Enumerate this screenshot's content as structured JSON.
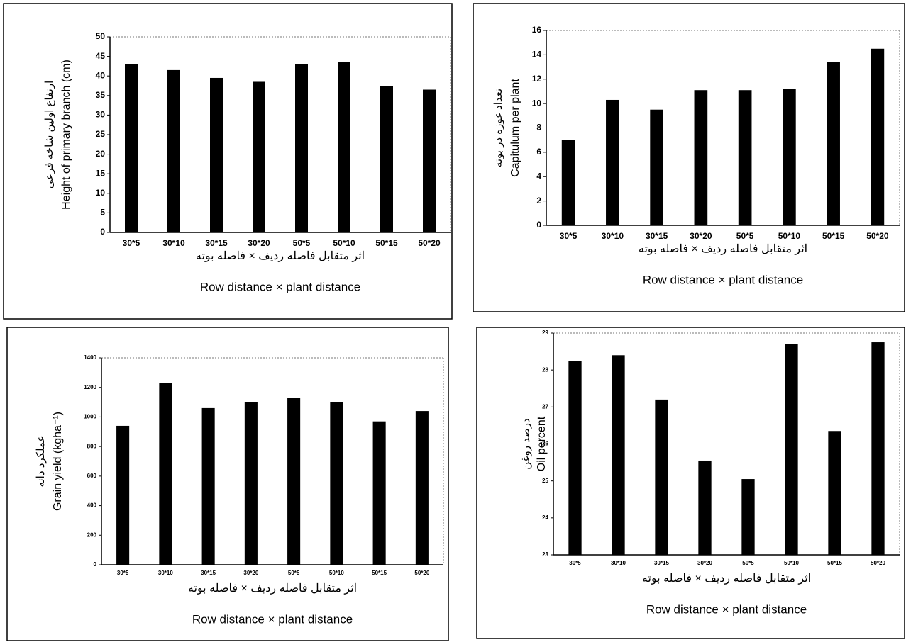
{
  "chart_data": [
    {
      "type": "bar",
      "ylabel_fa": "ارتفاع اولین شاخه فرعی",
      "ylabel": "Height of primary branch (cm)",
      "xlabel_fa": "اثر متقابل فاصله ردیف × فاصله بوته",
      "xlabel": "Row distance × plant distance",
      "categories": [
        "30*5",
        "30*10",
        "30*15",
        "30*20",
        "50*5",
        "50*10",
        "50*15",
        "50*20"
      ],
      "values": [
        43,
        41.5,
        39.5,
        38.5,
        43,
        43.5,
        37.5,
        36.5
      ],
      "color": "#000000",
      "ylim": [
        0,
        50
      ],
      "yticks": [
        0,
        5,
        10,
        15,
        20,
        25,
        30,
        35,
        40,
        45,
        50
      ]
    },
    {
      "type": "bar",
      "ylabel_fa": "تعداد غوزه در بوته",
      "ylabel": "Capitulum per plant",
      "xlabel_fa": "اثر متقابل فاصله ردیف × فاصله بوته",
      "xlabel": "Row distance × plant distance",
      "categories": [
        "30*5",
        "30*10",
        "30*15",
        "30*20",
        "50*5",
        "50*10",
        "50*15",
        "50*20"
      ],
      "values": [
        7,
        10.3,
        9.5,
        11.1,
        11.1,
        11.2,
        13.4,
        14.5
      ],
      "color": "#000000",
      "ylim": [
        0,
        16
      ],
      "yticks": [
        0,
        2,
        4,
        6,
        8,
        10,
        12,
        14,
        16
      ]
    },
    {
      "type": "bar",
      "ylabel_fa": "عملکرد دانه",
      "ylabel": "Grain yield (kgha⁻¹)",
      "xlabel_fa": "اثر متقابل فاصله ردیف × فاصله بوته",
      "xlabel": "Row distance × plant distance",
      "categories": [
        "30*5",
        "30*10",
        "30*15",
        "30*20",
        "50*5",
        "50*10",
        "50*15",
        "50*20"
      ],
      "values": [
        940,
        1230,
        1060,
        1100,
        1130,
        1100,
        970,
        1040
      ],
      "color": "#000000",
      "ylim": [
        0,
        1400
      ],
      "yticks": [
        0,
        200,
        400,
        600,
        800,
        1000,
        1200,
        1400
      ]
    },
    {
      "type": "bar",
      "ylabel_fa": "درصد روغن",
      "ylabel": "Oil percent",
      "xlabel_fa": "اثر متقابل فاصله ردیف × فاصله بوته",
      "xlabel": "Row distance × plant distance",
      "categories": [
        "30*5",
        "30*10",
        "30*15",
        "30*20",
        "50*5",
        "50*10",
        "50*15",
        "50*20"
      ],
      "values": [
        28.25,
        28.4,
        27.2,
        25.55,
        25.05,
        28.7,
        26.35,
        28.75
      ],
      "color": "#000000",
      "ylim": [
        23,
        29
      ],
      "yticks": [
        23,
        24,
        25,
        26,
        27,
        28,
        29
      ]
    }
  ]
}
